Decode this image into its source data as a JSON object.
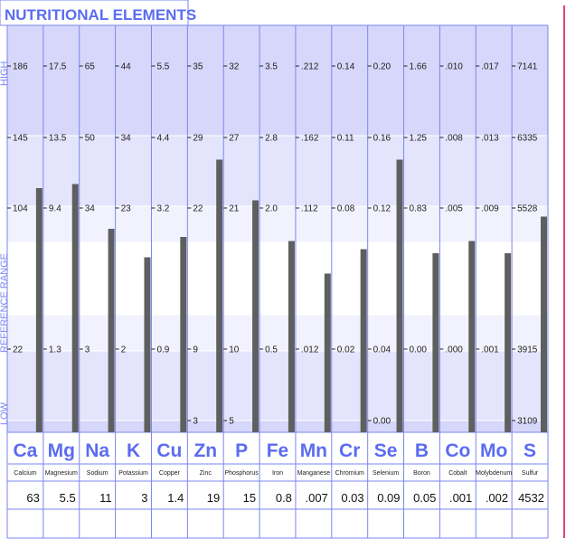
{
  "chart_data": {
    "type": "bar",
    "title": "NUTRITIONAL ELEMENTS",
    "side_labels": {
      "high": "HIGH",
      "reference": "REFERENCE RANGE",
      "low": "LOW"
    },
    "elements": [
      {
        "symbol": "Ca",
        "name": "Calcium",
        "value": "63",
        "ticks": [
          "186",
          "145",
          "104",
          "22"
        ],
        "level": 0.6
      },
      {
        "symbol": "Mg",
        "name": "Magnesium",
        "value": "5.5",
        "ticks": [
          "17.5",
          "13.5",
          "9.4",
          "1.3"
        ],
        "level": 0.61
      },
      {
        "symbol": "Na",
        "name": "Sodium",
        "value": "11",
        "ticks": [
          "65",
          "50",
          "34",
          "3"
        ],
        "level": 0.5
      },
      {
        "symbol": "K",
        "name": "Potassium",
        "value": "3",
        "ticks": [
          "44",
          "34",
          "23",
          "2"
        ],
        "level": 0.43
      },
      {
        "symbol": "Cu",
        "name": "Copper",
        "value": "1.4",
        "ticks": [
          "5.5",
          "4.4",
          "3.2",
          "0.9"
        ],
        "level": 0.48
      },
      {
        "symbol": "Zn",
        "name": "Zinc",
        "value": "19",
        "ticks": [
          "35",
          "29",
          "22",
          "9",
          "3"
        ],
        "level": 0.67
      },
      {
        "symbol": "P",
        "name": "Phosphorus",
        "value": "15",
        "ticks": [
          "32",
          "27",
          "21",
          "10",
          "5"
        ],
        "level": 0.57
      },
      {
        "symbol": "Fe",
        "name": "Iron",
        "value": "0.8",
        "ticks": [
          "3.5",
          "2.8",
          "2.0",
          "0.5"
        ],
        "level": 0.47
      },
      {
        "symbol": "Mn",
        "name": "Manganese",
        "value": ".007",
        "ticks": [
          ".212",
          ".162",
          ".112",
          ".012"
        ],
        "level": 0.39
      },
      {
        "symbol": "Cr",
        "name": "Chromium",
        "value": "0.03",
        "ticks": [
          "0.14",
          "0.11",
          "0.08",
          "0.02"
        ],
        "level": 0.45
      },
      {
        "symbol": "Se",
        "name": "Selenium",
        "value": "0.09",
        "ticks": [
          "0.20",
          "0.16",
          "0.12",
          "0.04",
          "0.00"
        ],
        "level": 0.67
      },
      {
        "symbol": "B",
        "name": "Boron",
        "value": "0.05",
        "ticks": [
          "1.66",
          "1.25",
          "0.83",
          "0.00"
        ],
        "level": 0.44
      },
      {
        "symbol": "Co",
        "name": "Cobalt",
        "value": ".001",
        "ticks": [
          ".010",
          ".008",
          ".005",
          ".000"
        ],
        "level": 0.47
      },
      {
        "symbol": "Mo",
        "name": "Molybdenum",
        "value": ".002",
        "ticks": [
          ".017",
          ".013",
          ".009",
          ".001"
        ],
        "level": 0.44
      },
      {
        "symbol": "S",
        "name": "Sulfur",
        "value": "4532",
        "ticks": [
          "7141",
          "6335",
          "5528",
          "3915",
          "3109"
        ],
        "level": 0.53
      }
    ]
  },
  "colors": {
    "accent": "#5b6cf0",
    "band_dark": "#d7d7fb",
    "band_mid": "#e4e4fc",
    "band_light": "#f2f2fe",
    "bar": "#5f5f5f",
    "right_line": "#e0004a"
  }
}
